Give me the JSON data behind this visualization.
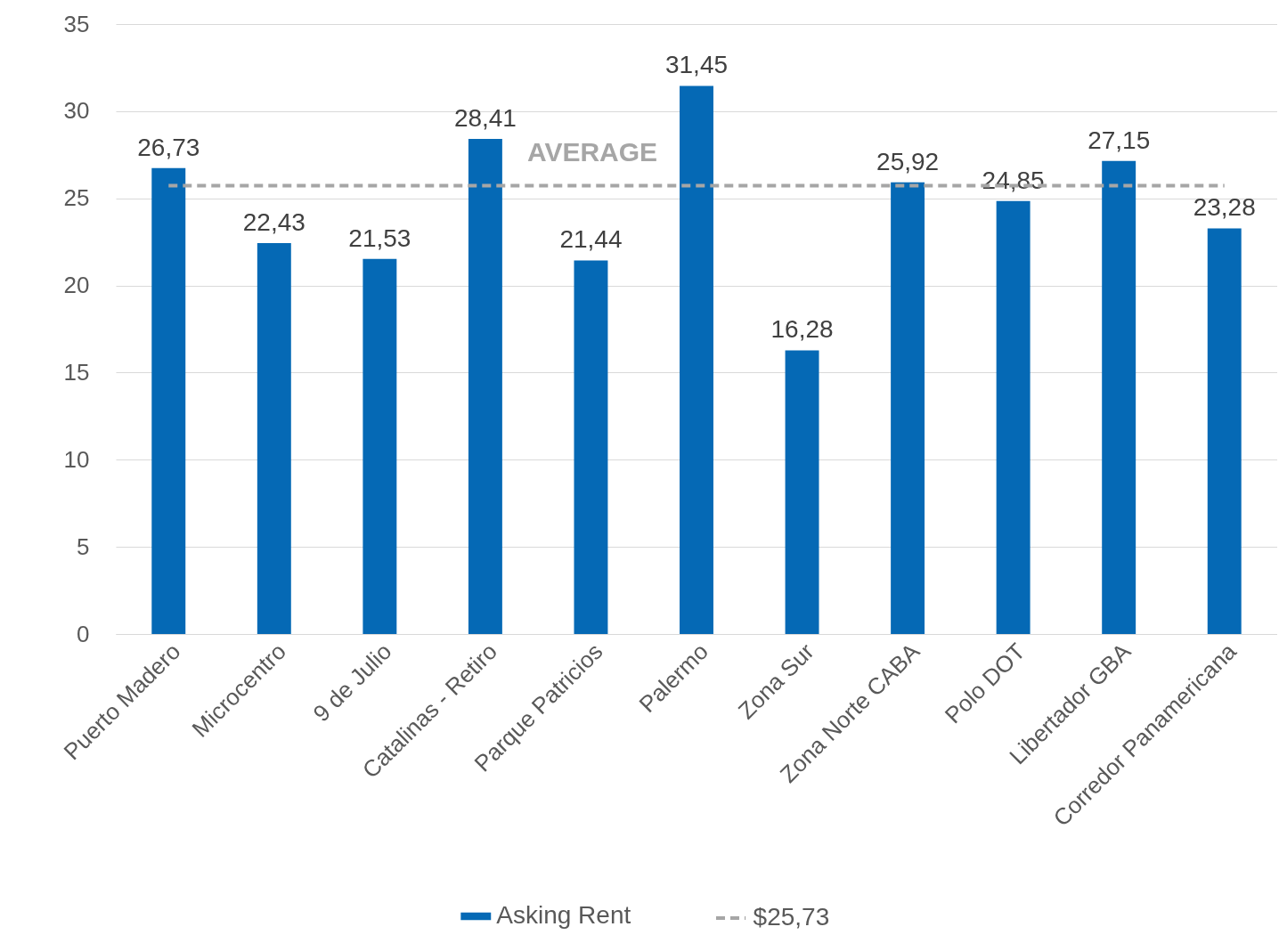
{
  "chart_data": {
    "type": "bar",
    "categories": [
      "Puerto Madero",
      "Microcentro",
      "9 de Julio",
      "Catalinas - Retiro",
      "Parque Patricios",
      "Palermo",
      "Zona Sur",
      "Zona Norte CABA",
      "Polo DOT",
      "Libertador GBA",
      "Corredor Panamericana"
    ],
    "series": [
      {
        "name": "Asking Rent",
        "color": "#0569b5",
        "values": [
          26.73,
          22.43,
          21.53,
          28.41,
          21.44,
          31.45,
          16.28,
          25.92,
          24.85,
          27.15,
          23.28
        ],
        "value_labels": [
          "26,73",
          "22,43",
          "21,53",
          "28,41",
          "21,44",
          "31,45",
          "16,28",
          "25,92",
          "24,85",
          "27,15",
          "23,28"
        ]
      },
      {
        "name": "$25,73",
        "type": "line",
        "color": "#a6a6a6",
        "line_style": "dashed",
        "marker": "none",
        "values": [
          25.73,
          25.73,
          25.73,
          25.73,
          25.73,
          25.73,
          25.73,
          25.73,
          25.73,
          25.73,
          25.73
        ]
      }
    ],
    "annotations": [
      "AVERAGE"
    ],
    "ylim": [
      0,
      35
    ],
    "yticks": [
      0,
      5,
      10,
      15,
      20,
      25,
      30,
      35
    ],
    "grid": "y",
    "legend": "bottom"
  }
}
